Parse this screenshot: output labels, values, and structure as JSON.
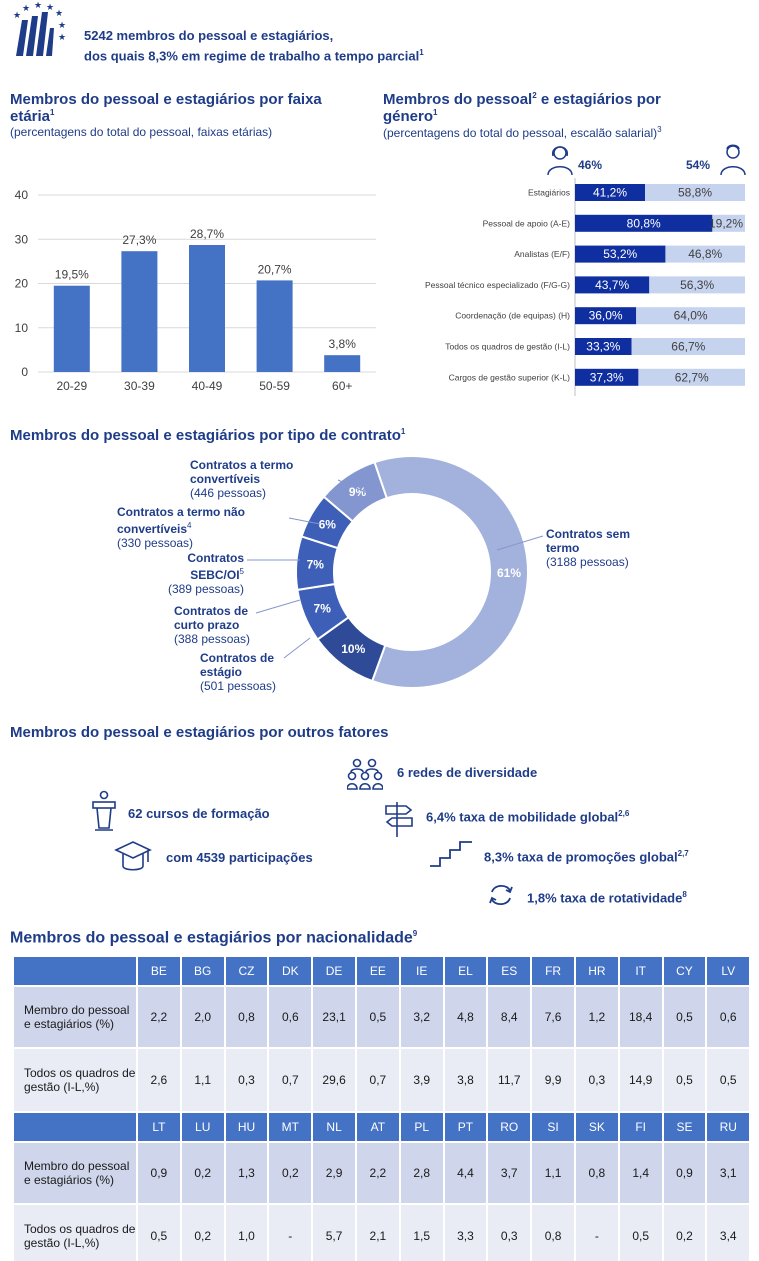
{
  "header": {
    "line1": "5242 membros do pessoal e estagiários,",
    "line2": "dos quais 8,3% em regime de trabalho a tempo parcial",
    "sup": "1"
  },
  "age": {
    "title_a": "Membros do pessoal e estagiários por faixa",
    "title_b": "etária",
    "title_sup": "1",
    "subtitle": "(percentagens do total do pessoal, faixas etárias)"
  },
  "gender": {
    "title_a": "Membros do pessoal",
    "title_sup1": "2",
    "title_b": "e estagiários por",
    "title_c": "género",
    "title_sup2": "1",
    "subtitle": "(percentagens do total do pessoal, escalão salarial)",
    "subtitle_sup": "3",
    "female_pct": "46%",
    "male_pct": "54%"
  },
  "contract": {
    "title": "Membros do pessoal e estagiários por tipo de contrato",
    "title_sup": "1",
    "labels": [
      {
        "name": "Contratos a termo convertíveis",
        "l1": "Contratos a termo",
        "l2": "convertíveis",
        "l3": "(446 pessoas)"
      },
      {
        "name": "Contratos a termo não convertíveis",
        "l1": "Contratos a termo não",
        "l2": "convertíveis",
        "sup": "4",
        "l3": "(330 pessoas)"
      },
      {
        "name": "Contratos SEBC/OI",
        "l1": "Contratos",
        "l2": "SEBC/OI",
        "sup": "5",
        "l3": "(389 pessoas)"
      },
      {
        "name": "Contratos de curto prazo",
        "l1": "Contratos de",
        "l2": "curto prazo",
        "l3": "(388 pessoas)"
      },
      {
        "name": "Contratos de estágio",
        "l1": "Contratos de",
        "l2": "estágio",
        "l3": "(501 pessoas)"
      },
      {
        "name": "Contratos sem termo",
        "l1": "Contratos sem",
        "l2": "termo",
        "l3": "(3188 pessoas)"
      }
    ]
  },
  "other": {
    "title": "Membros do pessoal e estagiários por outros fatores",
    "facts": {
      "networks": "6 redes de diversidade",
      "courses": "62 cursos de formação",
      "mobility": "6,4% taxa de mobilidade global",
      "mobility_sup": "2,6",
      "participants": "com 4539 participações",
      "promotions": "8,3% taxa de promoções global",
      "promotions_sup": "2,7",
      "turnover": "1,8% taxa de rotatividade",
      "turnover_sup": "8"
    }
  },
  "nationality": {
    "title": "Membros do pessoal e estagiários por nacionalidade",
    "title_sup": "9",
    "row_label_1": "Membro do pessoal e estagiários (%)",
    "row_label_2": "Todos os quadros de gestão (I-L,%)",
    "blocks": [
      {
        "countries": [
          "BE",
          "BG",
          "CZ",
          "DK",
          "DE",
          "EE",
          "IE",
          "EL",
          "ES",
          "FR",
          "HR",
          "IT",
          "CY",
          "LV"
        ],
        "staff": [
          "2,2",
          "2,0",
          "0,8",
          "0,6",
          "23,1",
          "0,5",
          "3,2",
          "4,8",
          "8,4",
          "7,6",
          "1,2",
          "18,4",
          "0,5",
          "0,6"
        ],
        "mgmt": [
          "2,6",
          "1,1",
          "0,3",
          "0,7",
          "29,6",
          "0,7",
          "3,9",
          "3,8",
          "11,7",
          "9,9",
          "0,3",
          "14,9",
          "0,5",
          "0,5"
        ]
      },
      {
        "countries": [
          "LT",
          "LU",
          "HU",
          "MT",
          "NL",
          "AT",
          "PL",
          "PT",
          "RO",
          "SI",
          "SK",
          "FI",
          "SE",
          "RU"
        ],
        "staff": [
          "0,9",
          "0,2",
          "1,3",
          "0,2",
          "2,9",
          "2,2",
          "2,8",
          "4,4",
          "3,7",
          "1,1",
          "0,8",
          "1,4",
          "0,9",
          "3,1"
        ],
        "mgmt": [
          "0,5",
          "0,2",
          "1,0",
          "-",
          "5,7",
          "2,1",
          "1,5",
          "3,3",
          "0,3",
          "0,8",
          "-",
          "0,5",
          "0,2",
          "3,4"
        ]
      }
    ]
  },
  "colors": {
    "navy": "#1f3c88",
    "bar_blue": "#4472c4",
    "female_bar": "#0f2fa0",
    "male_bar": "#c6d3ef",
    "donut_main": "#a3b2dc",
    "donut_mid": "#8496cf",
    "donut_dark": "#2f4a96",
    "donut_med": "#3d5fb8"
  },
  "chart_data": [
    {
      "type": "bar",
      "categories": [
        "20-29",
        "30-39",
        "40-49",
        "50-59",
        "60+"
      ],
      "values": [
        19.5,
        27.3,
        28.7,
        20.7,
        3.8
      ],
      "labels": [
        "19,5%",
        "27,3%",
        "28,7%",
        "20,7%",
        "3,8%"
      ],
      "ylim": [
        0,
        40
      ],
      "yticks": [
        "0",
        "10",
        "20",
        "30",
        "40"
      ],
      "grid": true
    },
    {
      "type": "bar",
      "orientation": "horizontal-stacked",
      "categories": [
        "Estagiários",
        "Pessoal de apoio (A-E)",
        "Analistas (E/F)",
        "Pessoal técnico especializado (F/G-G)",
        "Coordenação (de equipas) (H)",
        "Todos os quadros de gestão (I-L)",
        "Cargos de gestão superior (K-L)"
      ],
      "series": [
        {
          "values": [
            41.2,
            80.8,
            53.2,
            43.7,
            36.0,
            33.3,
            37.3
          ],
          "labels": [
            "41,2%",
            "80,8%",
            "53,2%",
            "43,7%",
            "36,0%",
            "33,3%",
            "37,3%"
          ]
        },
        {
          "values": [
            58.8,
            19.2,
            46.8,
            56.3,
            64.0,
            66.7,
            62.7
          ],
          "labels": [
            "58,8%",
            "19,2%",
            "46,8%",
            "56,3%",
            "64,0%",
            "66,7%",
            "62,7%"
          ]
        }
      ]
    },
    {
      "type": "pie",
      "style": "donut",
      "categories": [
        "Contratos sem termo",
        "Contratos de estágio",
        "Contratos de curto prazo",
        "Contratos SEBC/OI",
        "Contratos a termo não convertíveis",
        "Contratos a termo convertíveis"
      ],
      "values": [
        3188,
        501,
        388,
        389,
        330,
        446
      ],
      "labels": [
        "61%",
        "10%",
        "7%",
        "7%",
        "6%",
        "9%"
      ]
    }
  ]
}
